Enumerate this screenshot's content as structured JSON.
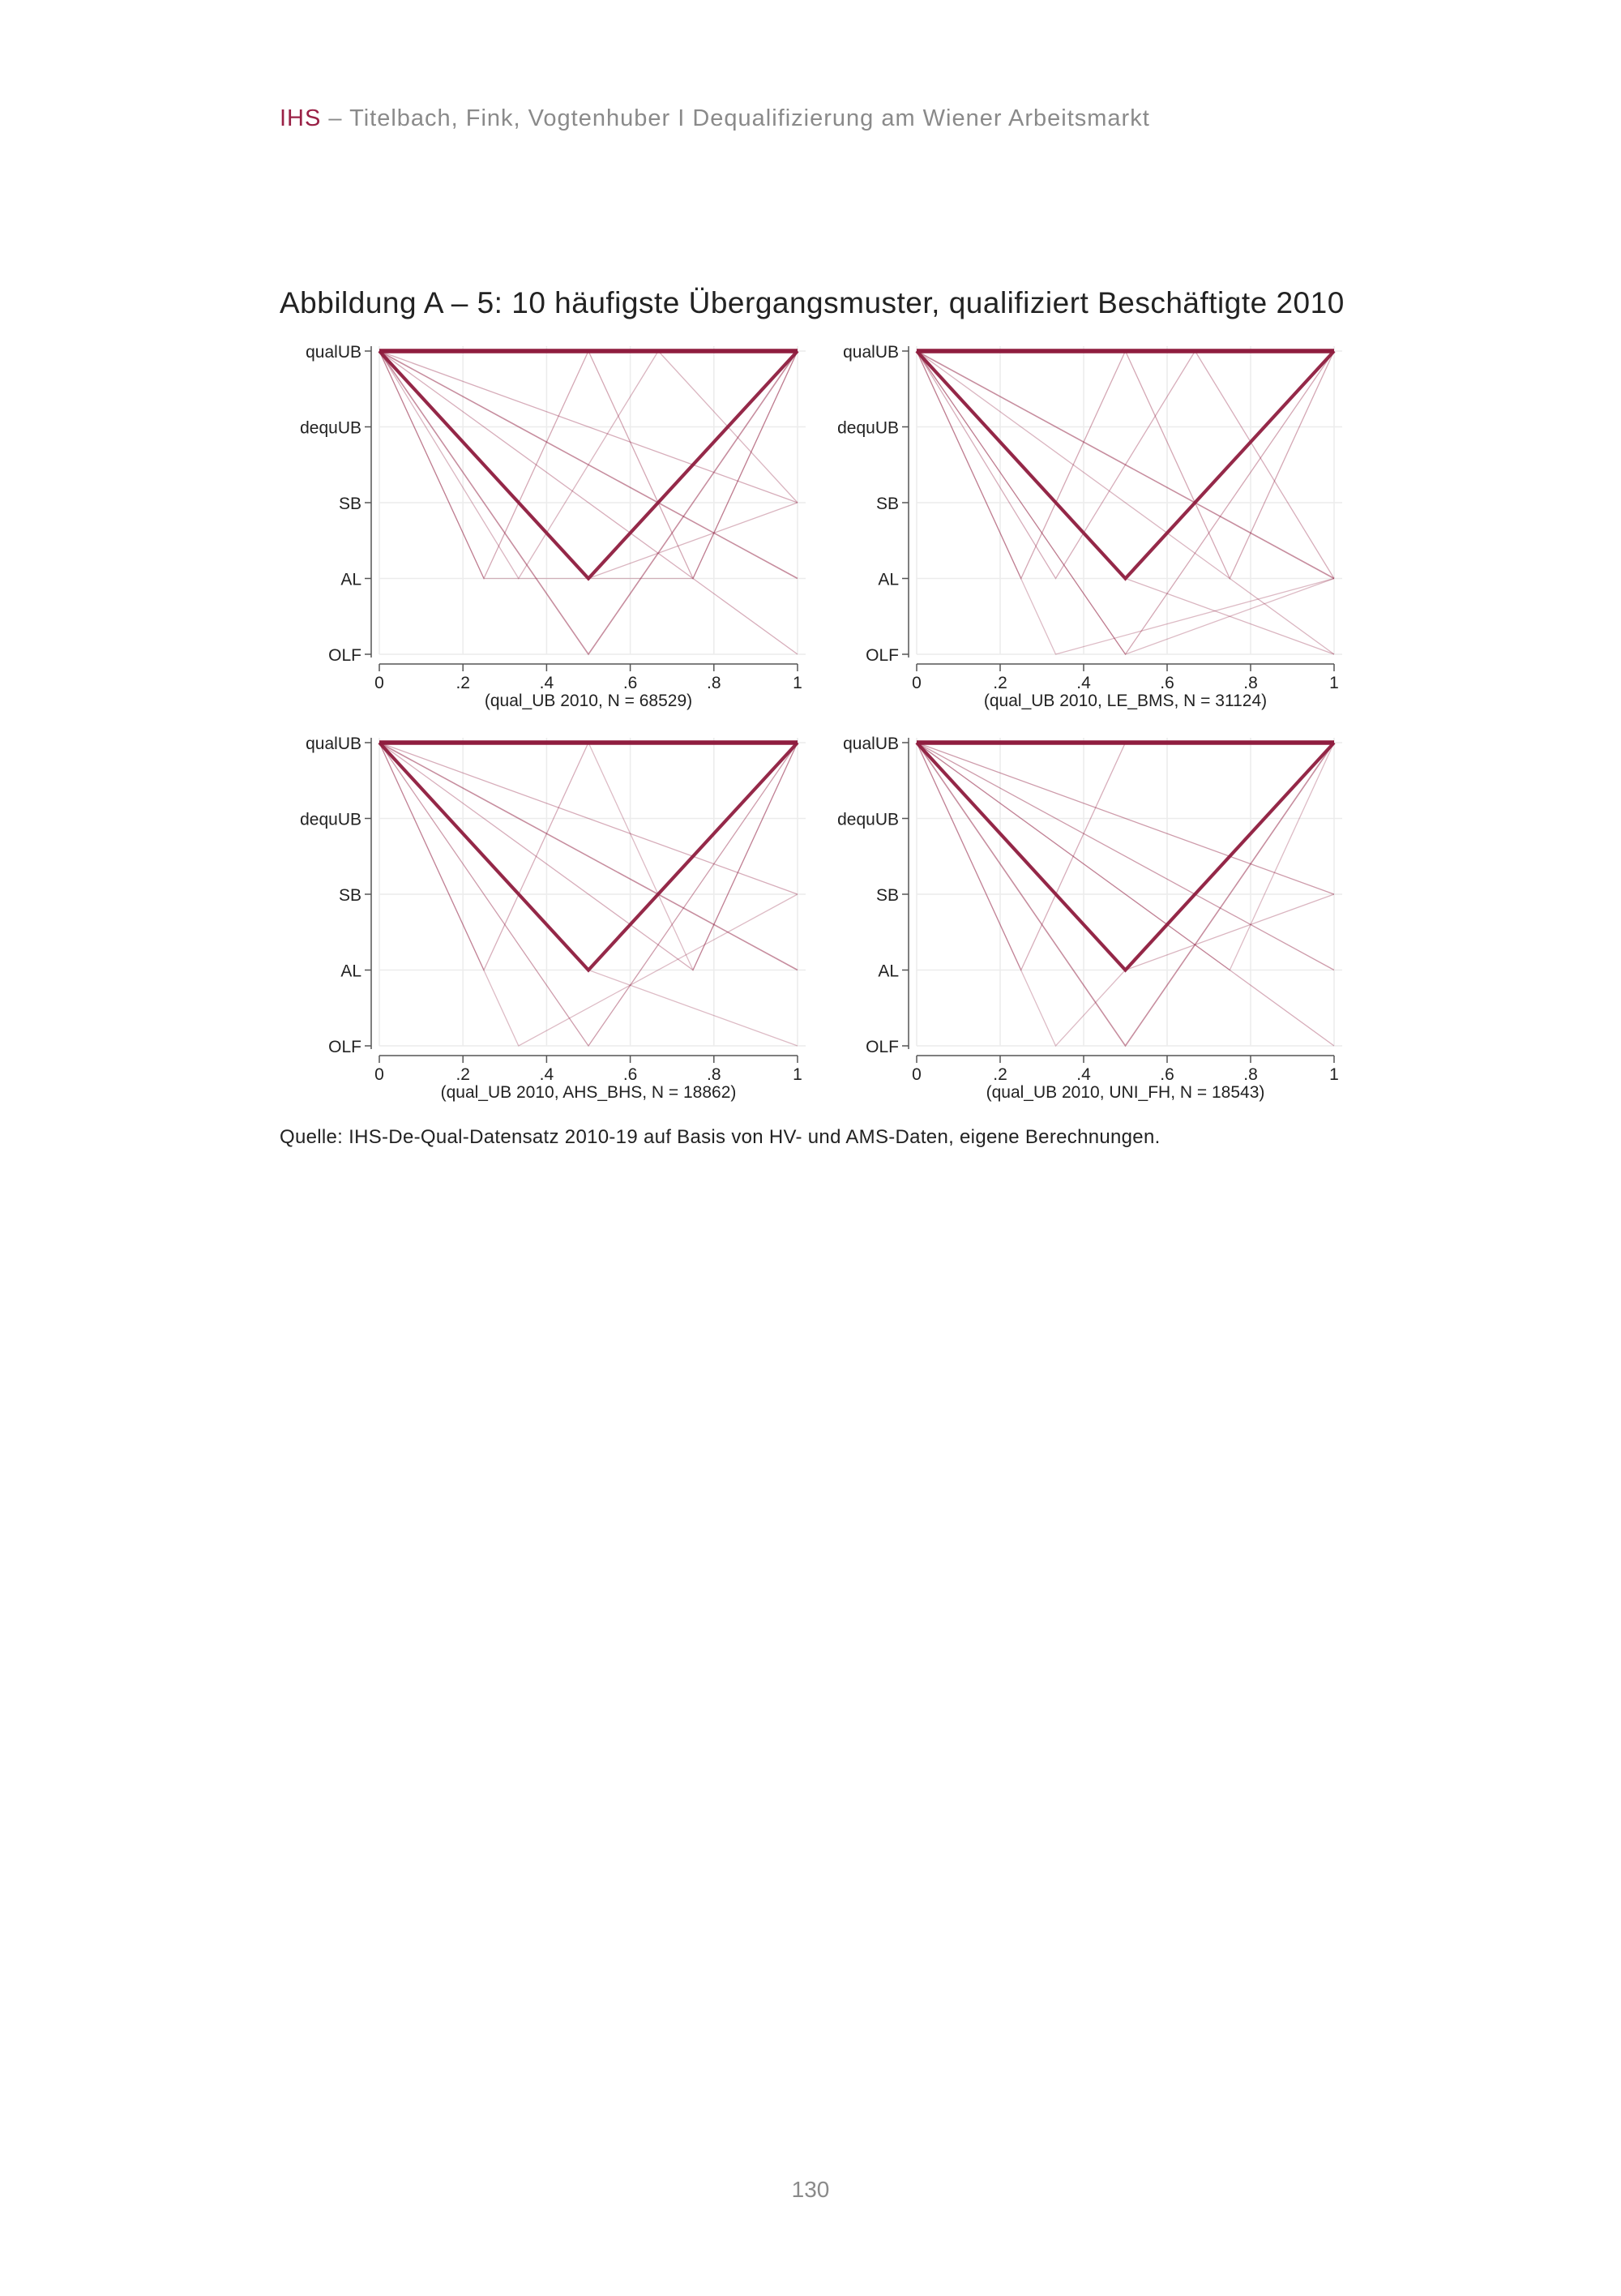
{
  "header": {
    "brand": "IHS",
    "text": " – Titelbach, Fink, Vogtenhuber I Dequalifizierung am Wiener Arbeitsmarkt"
  },
  "figure_title": "Abbildung A – 5: 10 häufigste Übergangsmuster, qualifiziert Beschäftigte 2010",
  "source": "Quelle: IHS-De-Qual-Datensatz 2010-19 auf Basis von HV- und AMS-Daten, eigene Berechnungen.",
  "page_number": "130",
  "colors": {
    "brand": "#9a2146",
    "line": "#8f1d3f",
    "grid": "#ececec",
    "axis": "#555555"
  },
  "chart_data": [
    {
      "type": "line",
      "panel": "qual_UB 2010",
      "xlabel": "(qual_UB  2010, N = 68529)",
      "x_ticks": [
        "0",
        ".2",
        ".4",
        ".6",
        ".8",
        "1"
      ],
      "xlim": [
        0,
        1
      ],
      "y_categories": [
        "OLF",
        "AL",
        "SB",
        "dequUB",
        "qualUB"
      ],
      "series": [
        {
          "x": [
            0,
            1
          ],
          "y": [
            4,
            4
          ],
          "weight": 3.5
        },
        {
          "x": [
            0,
            0.5,
            1
          ],
          "y": [
            4,
            1,
            4
          ],
          "weight": 2.6
        },
        {
          "x": [
            0,
            0.5,
            1
          ],
          "y": [
            4,
            0,
            4
          ],
          "weight": 1.0
        },
        {
          "x": [
            0,
            1
          ],
          "y": [
            4,
            1
          ],
          "weight": 1.0
        },
        {
          "x": [
            0,
            0.25,
            0.5,
            0.75,
            1
          ],
          "y": [
            4,
            1,
            4,
            1,
            4
          ],
          "weight": 0.6
        },
        {
          "x": [
            0,
            1
          ],
          "y": [
            4,
            2
          ],
          "weight": 0.5
        },
        {
          "x": [
            0,
            1
          ],
          "y": [
            4,
            0
          ],
          "weight": 0.5
        },
        {
          "x": [
            0,
            0.333,
            0.667,
            1
          ],
          "y": [
            4,
            1,
            4,
            2
          ],
          "weight": 0.4
        },
        {
          "x": [
            0,
            0.5,
            1
          ],
          "y": [
            4,
            1,
            2
          ],
          "weight": 0.4
        },
        {
          "x": [
            0,
            0.25,
            0.75,
            1
          ],
          "y": [
            4,
            1,
            1,
            4
          ],
          "weight": 0.3
        }
      ]
    },
    {
      "type": "line",
      "panel": "qual_UB 2010, LE_BMS",
      "xlabel": "(qual_UB  2010, LE_BMS, N = 31124)",
      "x_ticks": [
        "0",
        ".2",
        ".4",
        ".6",
        ".8",
        "1"
      ],
      "xlim": [
        0,
        1
      ],
      "y_categories": [
        "OLF",
        "AL",
        "SB",
        "dequUB",
        "qualUB"
      ],
      "series": [
        {
          "x": [
            0,
            1
          ],
          "y": [
            4,
            4
          ],
          "weight": 3.5
        },
        {
          "x": [
            0,
            0.5,
            1
          ],
          "y": [
            4,
            1,
            4
          ],
          "weight": 2.6
        },
        {
          "x": [
            0,
            1
          ],
          "y": [
            4,
            1
          ],
          "weight": 1.0
        },
        {
          "x": [
            0,
            0.25,
            0.5,
            0.75,
            1
          ],
          "y": [
            4,
            1,
            4,
            1,
            4
          ],
          "weight": 0.6
        },
        {
          "x": [
            0,
            0.5,
            1
          ],
          "y": [
            4,
            0,
            4
          ],
          "weight": 0.6
        },
        {
          "x": [
            0,
            0.333,
            0.667,
            1
          ],
          "y": [
            4,
            1,
            4,
            1
          ],
          "weight": 0.5
        },
        {
          "x": [
            0,
            1
          ],
          "y": [
            4,
            0
          ],
          "weight": 0.4
        },
        {
          "x": [
            0,
            0.5,
            1
          ],
          "y": [
            4,
            1,
            0
          ],
          "weight": 0.4
        },
        {
          "x": [
            0,
            0.333,
            1
          ],
          "y": [
            4,
            0,
            1
          ],
          "weight": 0.3
        },
        {
          "x": [
            0,
            0.5,
            1
          ],
          "y": [
            4,
            0,
            1
          ],
          "weight": 0.3
        }
      ]
    },
    {
      "type": "line",
      "panel": "qual_UB 2010, AHS_BHS",
      "xlabel": "(qual_UB  2010, AHS_BHS, N = 18862)",
      "x_ticks": [
        "0",
        ".2",
        ".4",
        ".6",
        ".8",
        "1"
      ],
      "xlim": [
        0,
        1
      ],
      "y_categories": [
        "OLF",
        "AL",
        "SB",
        "dequUB",
        "qualUB"
      ],
      "series": [
        {
          "x": [
            0,
            1
          ],
          "y": [
            4,
            4
          ],
          "weight": 3.5
        },
        {
          "x": [
            0,
            0.5,
            1
          ],
          "y": [
            4,
            1,
            4
          ],
          "weight": 2.6
        },
        {
          "x": [
            0,
            1
          ],
          "y": [
            4,
            1
          ],
          "weight": 1.0
        },
        {
          "x": [
            0,
            0.5,
            1
          ],
          "y": [
            4,
            0,
            4
          ],
          "weight": 0.8
        },
        {
          "x": [
            0,
            1
          ],
          "y": [
            4,
            2
          ],
          "weight": 0.5
        },
        {
          "x": [
            0,
            0.25,
            0.5,
            1
          ],
          "y": [
            4,
            1,
            4,
            4
          ],
          "weight": 0.5
        },
        {
          "x": [
            0,
            0.75,
            1
          ],
          "y": [
            4,
            1,
            4
          ],
          "weight": 0.5
        },
        {
          "x": [
            0,
            0.333,
            1
          ],
          "y": [
            4,
            0,
            2
          ],
          "weight": 0.3
        },
        {
          "x": [
            0,
            0.5,
            1
          ],
          "y": [
            4,
            1,
            0
          ],
          "weight": 0.3
        },
        {
          "x": [
            0,
            0.5,
            0.75,
            1
          ],
          "y": [
            4,
            4,
            1,
            4
          ],
          "weight": 0.3
        }
      ]
    },
    {
      "type": "line",
      "panel": "qual_UB 2010, UNI_FH",
      "xlabel": "(qual_UB  2010, UNI_FH, N = 18543)",
      "x_ticks": [
        "0",
        ".2",
        ".4",
        ".6",
        ".8",
        "1"
      ],
      "xlim": [
        0,
        1
      ],
      "y_categories": [
        "OLF",
        "AL",
        "SB",
        "dequUB",
        "qualUB"
      ],
      "series": [
        {
          "x": [
            0,
            1
          ],
          "y": [
            4,
            4
          ],
          "weight": 3.5
        },
        {
          "x": [
            0,
            0.5,
            1
          ],
          "y": [
            4,
            1,
            4
          ],
          "weight": 2.6
        },
        {
          "x": [
            0,
            0.5,
            1
          ],
          "y": [
            4,
            0,
            4
          ],
          "weight": 1.0
        },
        {
          "x": [
            0,
            1
          ],
          "y": [
            4,
            2
          ],
          "weight": 0.8
        },
        {
          "x": [
            0,
            1
          ],
          "y": [
            4,
            1
          ],
          "weight": 0.8
        },
        {
          "x": [
            0,
            0.25,
            0.5,
            1
          ],
          "y": [
            4,
            1,
            4,
            4
          ],
          "weight": 0.5
        },
        {
          "x": [
            0,
            1
          ],
          "y": [
            4,
            0
          ],
          "weight": 0.5
        },
        {
          "x": [
            0,
            0.333,
            1
          ],
          "y": [
            4,
            0,
            4
          ],
          "weight": 0.3
        },
        {
          "x": [
            0,
            0.5,
            1
          ],
          "y": [
            4,
            1,
            2
          ],
          "weight": 0.4
        },
        {
          "x": [
            0,
            0.75,
            1
          ],
          "y": [
            4,
            1,
            4
          ],
          "weight": 0.3
        }
      ]
    }
  ]
}
